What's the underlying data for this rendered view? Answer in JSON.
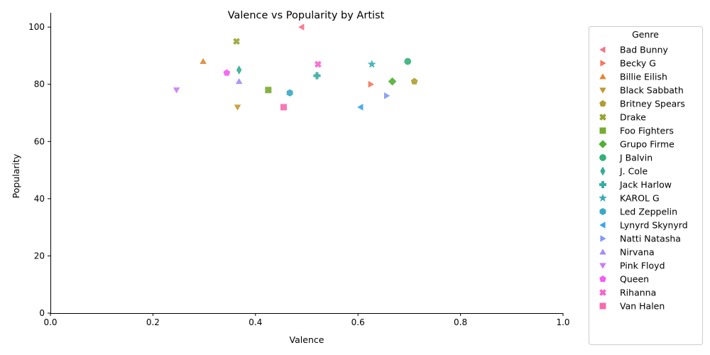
{
  "chart_data": {
    "type": "scatter",
    "title": "Valence vs Popularity by Artist",
    "xlabel": "Valence",
    "ylabel": "Popularity",
    "xlim": [
      0,
      1
    ],
    "ylim": [
      0,
      105
    ],
    "xticks": [
      0.0,
      0.2,
      0.4,
      0.6,
      0.8,
      1.0
    ],
    "xtick_labels": [
      "0.0",
      "0.2",
      "0.4",
      "0.6",
      "0.8",
      "1.0"
    ],
    "yticks": [
      0,
      20,
      40,
      60,
      80,
      100
    ],
    "ytick_labels": [
      "0",
      "20",
      "40",
      "60",
      "80",
      "100"
    ],
    "grid": false,
    "legend": {
      "title": "Genre",
      "placement": "outside-right"
    },
    "series": [
      {
        "name": "Bad Bunny",
        "marker": "triangle-left",
        "color": "#f77189",
        "points": [
          {
            "x": 0.49,
            "y": 100
          }
        ]
      },
      {
        "name": "Becky G",
        "marker": "triangle-right",
        "color": "#f3775a",
        "points": [
          {
            "x": 0.625,
            "y": 80
          }
        ]
      },
      {
        "name": "Billie Eilish",
        "marker": "triangle-up",
        "color": "#dc8932",
        "points": [
          {
            "x": 0.298,
            "y": 88
          }
        ]
      },
      {
        "name": "Black Sabbath",
        "marker": "triangle-down",
        "color": "#c39732",
        "points": [
          {
            "x": 0.365,
            "y": 72
          }
        ]
      },
      {
        "name": "Britney Spears",
        "marker": "pentagon",
        "color": "#ae9d31",
        "points": [
          {
            "x": 0.71,
            "y": 81
          }
        ]
      },
      {
        "name": "Drake",
        "marker": "x",
        "color": "#97a431",
        "points": [
          {
            "x": 0.363,
            "y": 95
          }
        ]
      },
      {
        "name": "Foo Fighters",
        "marker": "square",
        "color": "#77ab31",
        "points": [
          {
            "x": 0.425,
            "y": 78
          }
        ]
      },
      {
        "name": "Grupo Firme",
        "marker": "diamond",
        "color": "#4fb032",
        "points": [
          {
            "x": 0.667,
            "y": 81
          }
        ]
      },
      {
        "name": "J Balvin",
        "marker": "circle",
        "color": "#33b07a",
        "points": [
          {
            "x": 0.697,
            "y": 88
          }
        ]
      },
      {
        "name": "J. Cole",
        "marker": "thin-diamond",
        "color": "#35ac97",
        "points": [
          {
            "x": 0.368,
            "y": 85
          }
        ]
      },
      {
        "name": "Jack Harlow",
        "marker": "plus",
        "color": "#36ada4",
        "points": [
          {
            "x": 0.52,
            "y": 83
          }
        ]
      },
      {
        "name": "KAROL G",
        "marker": "star",
        "color": "#37abb4",
        "points": [
          {
            "x": 0.627,
            "y": 87
          }
        ]
      },
      {
        "name": "Led Zeppelin",
        "marker": "hexagon",
        "color": "#38a9c5",
        "points": [
          {
            "x": 0.467,
            "y": 77
          }
        ]
      },
      {
        "name": "Lynyrd Skynyrd",
        "marker": "triangle-left",
        "color": "#3ba3ec",
        "points": [
          {
            "x": 0.605,
            "y": 72
          }
        ]
      },
      {
        "name": "Natti Natasha",
        "marker": "triangle-right",
        "color": "#7d9af4",
        "points": [
          {
            "x": 0.656,
            "y": 76
          }
        ]
      },
      {
        "name": "Nirvana",
        "marker": "triangle-up",
        "color": "#a48cf4",
        "points": [
          {
            "x": 0.368,
            "y": 81
          }
        ]
      },
      {
        "name": "Pink Floyd",
        "marker": "triangle-down",
        "color": "#cc7af4",
        "points": [
          {
            "x": 0.246,
            "y": 78
          }
        ]
      },
      {
        "name": "Queen",
        "marker": "pentagon",
        "color": "#f45cf2",
        "points": [
          {
            "x": 0.344,
            "y": 84
          }
        ]
      },
      {
        "name": "Rihanna",
        "marker": "x",
        "color": "#f565cc",
        "points": [
          {
            "x": 0.522,
            "y": 87
          }
        ]
      },
      {
        "name": "Van Halen",
        "marker": "square",
        "color": "#f66bad",
        "points": [
          {
            "x": 0.455,
            "y": 72
          }
        ]
      }
    ]
  }
}
